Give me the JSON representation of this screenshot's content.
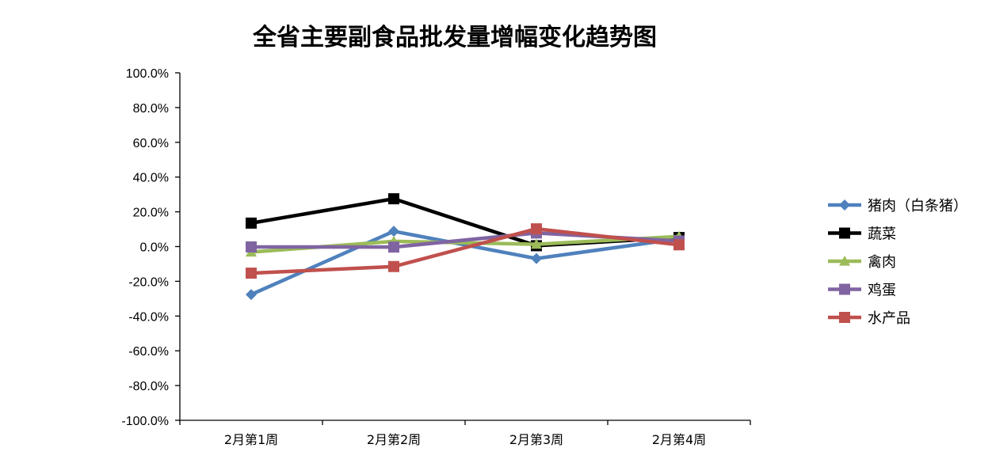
{
  "chart_data": {
    "type": "line",
    "title": "全省主要副食品批发量增幅变化趋势图",
    "xlabel": "",
    "ylabel": "",
    "categories": [
      "2月第1周",
      "2月第2周",
      "2月第3周",
      "2月第4周"
    ],
    "ylim": [
      -100,
      100
    ],
    "yticks": [
      100,
      80,
      60,
      40,
      20,
      0,
      -20,
      -40,
      -60,
      -80,
      -100
    ],
    "ytick_labels": [
      "100.0%",
      "80.0%",
      "60.0%",
      "40.0%",
      "20.0%",
      "0.0%",
      "-20.0%",
      "-40.0%",
      "-60.0%",
      "-80.0%",
      "-100.0%"
    ],
    "grid": false,
    "legend_position": "right",
    "series": [
      {
        "name": "猪肉（白条猪）",
        "color": "#4f81bd",
        "marker": "diamond",
        "values": [
          -27.6,
          8.8,
          -6.9,
          4.5
        ]
      },
      {
        "name": "蔬菜",
        "color": "#000000",
        "marker": "square",
        "values": [
          13.5,
          27.5,
          0.5,
          5.2
        ]
      },
      {
        "name": "禽肉",
        "color": "#9bbb59",
        "marker": "triangle",
        "values": [
          -3.2,
          3.0,
          1.3,
          5.8
        ]
      },
      {
        "name": "鸡蛋",
        "color": "#8064a2",
        "marker": "square",
        "values": [
          -0.2,
          -0.3,
          7.8,
          3.2
        ]
      },
      {
        "name": "水产品",
        "color": "#c0504d",
        "marker": "square",
        "values": [
          -15.3,
          -11.5,
          10.2,
          1.0
        ]
      }
    ]
  }
}
